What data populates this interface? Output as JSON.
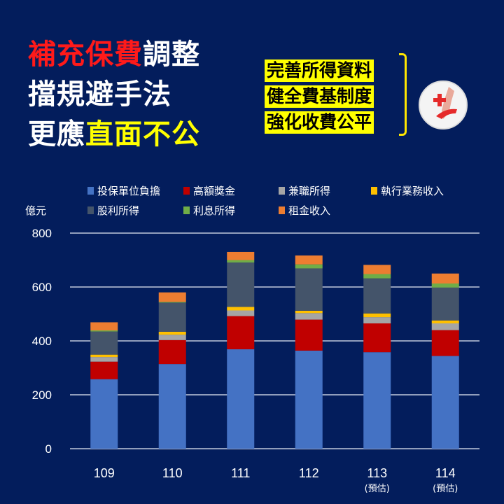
{
  "headline": {
    "line1_red": "補充保費",
    "line1_white": "調整",
    "line2": "擋規避手法",
    "line3_white": "更應",
    "line3_yellow": "直面不公"
  },
  "points": [
    "完善所得資料",
    "健全費基制度",
    "強化收費公平"
  ],
  "colors": {
    "background": "#031d5c",
    "accent_red": "#ff1a1a",
    "accent_yellow": "#ffff00"
  },
  "chart_data": {
    "type": "bar",
    "stacked": true,
    "ylabel": "億元",
    "ylim": [
      0,
      800
    ],
    "yticks": [
      "0",
      "200",
      "400",
      "600",
      "800"
    ],
    "ytick_values": [
      0,
      200,
      400,
      600,
      800
    ],
    "grid": true,
    "legend_placement": "top",
    "categories": [
      "109",
      "110",
      "111",
      "112",
      "113",
      "114"
    ],
    "category_notes": [
      "",
      "",
      "",
      "",
      "(預估)",
      "(預估)"
    ],
    "series": [
      {
        "name": "投保單位負擔",
        "color": "#4472c4",
        "values": [
          258,
          314,
          369,
          364,
          358,
          344
        ]
      },
      {
        "name": "高額獎金",
        "color": "#c00000",
        "values": [
          65,
          89,
          123,
          115,
          107,
          96
        ]
      },
      {
        "name": "兼職所得",
        "color": "#a5a5a5",
        "values": [
          17,
          20,
          21,
          24,
          23,
          25
        ]
      },
      {
        "name": "執行業務收入",
        "color": "#ffc000",
        "values": [
          9,
          11,
          13,
          9,
          14,
          11
        ]
      },
      {
        "name": "股利所得",
        "color": "#44546a",
        "values": [
          86,
          108,
          165,
          157,
          130,
          122
        ]
      },
      {
        "name": "利息所得",
        "color": "#70ad47",
        "values": [
          4,
          3,
          9,
          15,
          16,
          15
        ]
      },
      {
        "name": "租金收入",
        "color": "#ed7d31",
        "values": [
          30,
          35,
          30,
          33,
          34,
          37
        ]
      }
    ]
  }
}
